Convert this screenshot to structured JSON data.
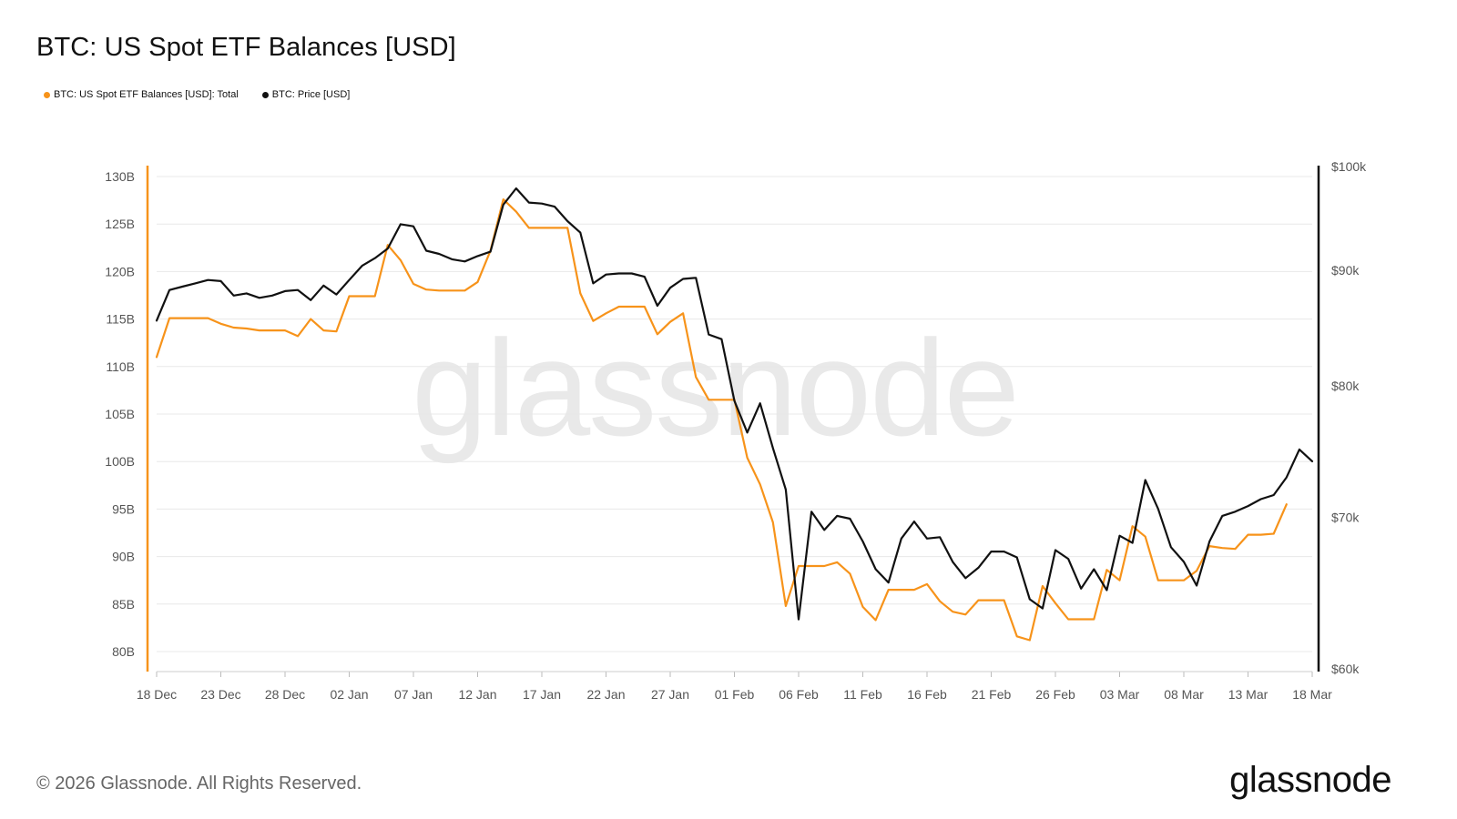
{
  "title": "BTC: US Spot ETF Balances [USD]",
  "legend": [
    {
      "label": "BTC: US Spot ETF Balances [USD]: Total",
      "color": "#f7931a"
    },
    {
      "label": "BTC: Price [USD]",
      "color": "#111111"
    }
  ],
  "watermark": "glassnode",
  "footer": {
    "copyright": "© 2026 Glassnode. All Rights Reserved.",
    "brand": "glassnode"
  },
  "chart_data": {
    "type": "line",
    "x_start": "2025-12-18",
    "x_ticks": [
      "18 Dec",
      "23 Dec",
      "28 Dec",
      "02 Jan",
      "07 Jan",
      "12 Jan",
      "17 Jan",
      "22 Jan",
      "27 Jan",
      "01 Feb",
      "06 Feb",
      "11 Feb",
      "16 Feb",
      "21 Feb",
      "26 Feb",
      "03 Mar",
      "08 Mar",
      "13 Mar",
      "18 Mar"
    ],
    "y_left": {
      "min": 80,
      "max": 130,
      "ticks": [
        "80B",
        "85B",
        "90B",
        "95B",
        "100B",
        "105B",
        "110B",
        "115B",
        "120B",
        "125B",
        "130B"
      ],
      "axis_color": "#f7931a"
    },
    "y_right": {
      "scale": "log",
      "ticks": [
        {
          "value": 60000,
          "label": "$60k"
        },
        {
          "value": 70000,
          "label": "$70k"
        },
        {
          "value": 80000,
          "label": "$80k"
        },
        {
          "value": 90000,
          "label": "$90k"
        },
        {
          "value": 100000,
          "label": "$100k"
        }
      ],
      "axis_color": "#111111"
    },
    "grid": true,
    "series": [
      {
        "name": "BTC: US Spot ETF Balances [USD]: Total",
        "axis": "left",
        "color": "#f7931a",
        "values": [
          111,
          115.1,
          115.1,
          115.1,
          115.1,
          114.5,
          114.1,
          114,
          113.8,
          113.8,
          113.8,
          113.2,
          115,
          113.8,
          113.7,
          117.4,
          117.4,
          117.4,
          122.8,
          121.2,
          118.7,
          118.1,
          118,
          118,
          118,
          118.9,
          122.2,
          127.6,
          126.3,
          124.6,
          124.6,
          124.6,
          124.6,
          117.7,
          114.8,
          115.6,
          116.3,
          116.3,
          116.3,
          113.4,
          114.7,
          115.6,
          108.9,
          106.5,
          106.5,
          106.5,
          100.4,
          97.6,
          93.6,
          84.8,
          89,
          89,
          89,
          89.4,
          88.2,
          84.7,
          83.3,
          86.5,
          86.5,
          86.5,
          87.1,
          85.3,
          84.2,
          83.9,
          85.4,
          85.4,
          85.4,
          81.6,
          81.2,
          86.9,
          85.1,
          83.4,
          83.4,
          83.4,
          88.6,
          87.5,
          93.2,
          92.1,
          87.5,
          87.5,
          87.5,
          88.5,
          91.1,
          90.9,
          90.8,
          92.3,
          92.3,
          92.4,
          95.5
        ]
      },
      {
        "name": "BTC: Price [USD]",
        "axis": "right",
        "color": "#111111",
        "values": [
          85500,
          88200,
          88500,
          88800,
          89100,
          89000,
          87700,
          87900,
          87500,
          87700,
          88100,
          88200,
          87300,
          88600,
          87800,
          89100,
          90400,
          91100,
          92000,
          94300,
          94100,
          91800,
          91500,
          91000,
          90800,
          91300,
          91700,
          96200,
          97800,
          96400,
          96300,
          96000,
          94600,
          93500,
          88800,
          89600,
          89700,
          89700,
          89400,
          86800,
          88400,
          89200,
          89300,
          84300,
          83900,
          78800,
          76300,
          78600,
          75100,
          72000,
          63100,
          70400,
          69100,
          70100,
          69900,
          68300,
          66400,
          65500,
          68500,
          69700,
          68500,
          68600,
          66900,
          65800,
          66500,
          67600,
          67600,
          67200,
          64400,
          63800,
          67700,
          67100,
          65100,
          66400,
          65000,
          68700,
          68200,
          72700,
          70600,
          67900,
          66900,
          65300,
          68300,
          70100,
          70400,
          70800,
          71300,
          71600,
          72900,
          75000,
          74100
        ]
      }
    ]
  }
}
